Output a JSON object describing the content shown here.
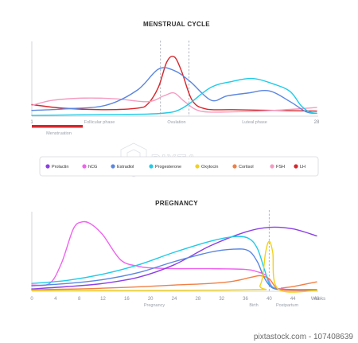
{
  "colors": {
    "Prolactin": "#8b3fe6",
    "hCG": "#f062ef",
    "Estradiol": "#5b86e0",
    "Progesterone": "#1fcbe8",
    "Oxytocin": "#f2d21b",
    "Cortisol": "#f07f45",
    "FSH": "#f59bc0",
    "LH": "#d8262c"
  },
  "chart_data": [
    {
      "type": "line",
      "title": "MENSTRUAL CYCLE",
      "x_ticks": [
        "1",
        "28"
      ],
      "xlim": [
        1,
        28
      ],
      "phases": [
        {
          "label": "Menstruation",
          "x_start": 1,
          "x_end": 5
        },
        {
          "label": "Follicular phase",
          "x": 8
        },
        {
          "label": "Ovulation",
          "x": 14.5
        },
        {
          "label": "Luteal phase",
          "x": 22
        }
      ],
      "markers_x": [
        13.2,
        15.9
      ],
      "ylim": [
        0,
        100
      ],
      "series": [
        {
          "name": "LH",
          "x": [
            1,
            4,
            8,
            11,
            12,
            13,
            13.8,
            14.5,
            15.2,
            16.2,
            17.5,
            20,
            24,
            28
          ],
          "y": [
            16,
            11,
            9,
            11,
            17,
            40,
            75,
            82,
            62,
            22,
            10,
            9,
            8,
            7
          ]
        },
        {
          "name": "FSH",
          "x": [
            1,
            3,
            6,
            9,
            12,
            13.5,
            14.5,
            15.5,
            17,
            20,
            24,
            28
          ],
          "y": [
            15,
            22,
            25,
            24,
            20,
            28,
            32,
            20,
            7,
            6,
            8,
            12
          ]
        },
        {
          "name": "Estradiol",
          "x": [
            1,
            4,
            8,
            11,
            13,
            14.5,
            16,
            18,
            19.5,
            21.5,
            23.5,
            25.5,
            27,
            28
          ],
          "y": [
            8,
            10,
            15,
            36,
            65,
            63,
            48,
            22,
            28,
            32,
            35,
            20,
            6,
            4
          ]
        },
        {
          "name": "Progesterone",
          "x": [
            1,
            6,
            12,
            14,
            15,
            16,
            18,
            20,
            22,
            24,
            25.5,
            26.5,
            27.3,
            28
          ],
          "y": [
            1,
            2,
            3,
            5,
            9,
            18,
            40,
            48,
            52,
            44,
            34,
            15,
            6,
            4
          ]
        }
      ]
    },
    {
      "type": "line",
      "title": "PREGNANCY",
      "x_ticks": [
        "0",
        "4",
        "8",
        "12",
        "16",
        "20",
        "24",
        "28",
        "32",
        "36",
        "40",
        "44",
        "48"
      ],
      "x_unit": "Weeks",
      "xlim": [
        0,
        48
      ],
      "phases": [
        {
          "label": "Pregnancy",
          "x": 20
        },
        {
          "label": "Birth",
          "x": 40
        },
        {
          "label": "Postpartum",
          "x": 45
        }
      ],
      "marker_x": 40,
      "ylim": [
        0,
        100
      ],
      "series": [
        {
          "name": "hCG",
          "x": [
            0,
            3,
            5,
            7,
            8.5,
            10,
            12,
            15,
            18,
            20,
            24,
            30,
            36,
            38,
            39.5,
            40.5,
            42,
            45,
            48
          ],
          "y": [
            8,
            10,
            36,
            80,
            89,
            86,
            72,
            40,
            32,
            30,
            29,
            29,
            28,
            25,
            20,
            6,
            3,
            2,
            2
          ]
        },
        {
          "name": "Prolactin",
          "x": [
            0,
            6,
            12,
            18,
            24,
            30,
            36,
            40,
            44,
            48
          ],
          "y": [
            3,
            6,
            10,
            18,
            34,
            58,
            76,
            82,
            80,
            71
          ]
        },
        {
          "name": "Progesterone",
          "x": [
            0,
            6,
            12,
            18,
            24,
            30,
            34,
            36.5,
            38,
            39.2,
            40,
            41,
            43,
            48
          ],
          "y": [
            10,
            14,
            22,
            34,
            50,
            64,
            70,
            68,
            55,
            28,
            10,
            4,
            2,
            2
          ]
        },
        {
          "name": "Estradiol",
          "x": [
            0,
            6,
            12,
            18,
            24,
            30,
            34,
            36.5,
            38,
            39,
            40,
            41,
            43,
            48
          ],
          "y": [
            7,
            10,
            15,
            24,
            38,
            50,
            54,
            52,
            38,
            20,
            8,
            3,
            2,
            2
          ]
        },
        {
          "name": "Cortisol",
          "x": [
            0,
            8,
            16,
            24,
            30,
            34,
            37,
            38.5,
            40,
            41,
            42,
            45,
            48
          ],
          "y": [
            2,
            3,
            5,
            8,
            10,
            13,
            18,
            20,
            16,
            6,
            2,
            1,
            1
          ]
        },
        {
          "name": "Oxytocin",
          "x": [
            0,
            36,
            38.5,
            39.4,
            40,
            40.6,
            41.5,
            48
          ],
          "y": [
            1,
            2,
            8,
            50,
            64,
            50,
            3,
            1
          ]
        },
        {
          "name": "Cortisol-secondary",
          "x": [
            42,
            44,
            46,
            48
          ],
          "y": [
            4,
            6,
            9,
            12
          ]
        }
      ]
    }
  ],
  "legend": [
    {
      "name": "Prolactin",
      "icon": "dot-icon"
    },
    {
      "name": "hCG",
      "icon": "dot-icon"
    },
    {
      "name": "Estradiol",
      "icon": "dot-icon"
    },
    {
      "name": "Progesterone",
      "icon": "dot-icon"
    },
    {
      "name": "Oxytocin",
      "icon": "dot-icon"
    },
    {
      "name": "Cortisol",
      "icon": "dot-icon"
    },
    {
      "name": "FSH",
      "icon": "dot-icon"
    },
    {
      "name": "LH",
      "icon": "dot-icon"
    }
  ],
  "watermark": {
    "logo_text": "PIXTA",
    "footer": "pixtastock.com - 107408639"
  }
}
